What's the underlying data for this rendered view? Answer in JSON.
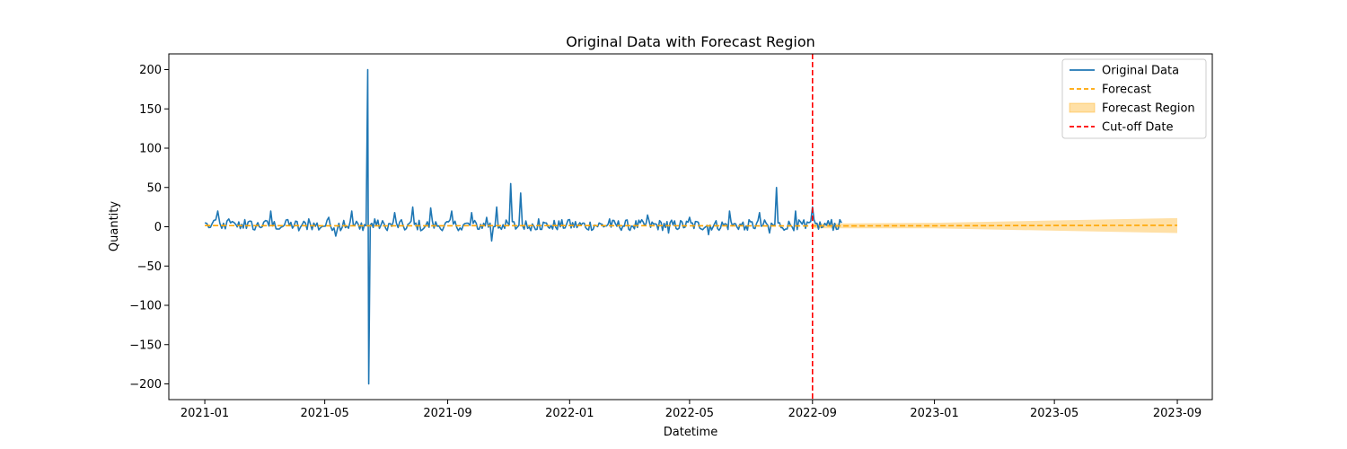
{
  "chart_data": {
    "type": "line",
    "title": "Original Data with Forecast Region",
    "xlabel": "Datetime",
    "ylabel": "Quantity",
    "xlim": [
      "2020-11-26",
      "2023-10-06"
    ],
    "ylim": [
      -220,
      220
    ],
    "x_ticks": [
      "2021-01",
      "2021-05",
      "2021-09",
      "2022-01",
      "2022-05",
      "2022-09",
      "2023-01",
      "2023-05",
      "2023-09"
    ],
    "y_ticks": [
      200,
      150,
      100,
      50,
      0,
      -50,
      -100,
      -150,
      -200
    ],
    "y_tick_labels": [
      "200",
      "150",
      "100",
      "50",
      "0",
      "−50",
      "−100",
      "−150",
      "−200"
    ],
    "grid": false,
    "legend_position": "top-right",
    "series": [
      {
        "name": "Original Data",
        "style": "solid",
        "color": "#1f77b4",
        "points": [
          [
            "2021-01-01",
            5
          ],
          [
            "2021-01-05",
            -1
          ],
          [
            "2021-01-10",
            8
          ],
          [
            "2021-01-14",
            20
          ],
          [
            "2021-01-18",
            -2
          ],
          [
            "2021-01-25",
            10
          ],
          [
            "2021-02-01",
            3
          ],
          [
            "2021-02-10",
            9
          ],
          [
            "2021-02-20",
            -4
          ],
          [
            "2021-03-01",
            6
          ],
          [
            "2021-03-08",
            20
          ],
          [
            "2021-03-15",
            -3
          ],
          [
            "2021-03-25",
            9
          ],
          [
            "2021-04-05",
            -5
          ],
          [
            "2021-04-15",
            10
          ],
          [
            "2021-04-25",
            -4
          ],
          [
            "2021-05-05",
            12
          ],
          [
            "2021-05-12",
            -12
          ],
          [
            "2021-05-20",
            8
          ],
          [
            "2021-05-28",
            20
          ],
          [
            "2021-06-05",
            -3
          ],
          [
            "2021-06-13",
            200
          ],
          [
            "2021-06-14",
            -200
          ],
          [
            "2021-06-20",
            10
          ],
          [
            "2021-07-01",
            -2
          ],
          [
            "2021-07-10",
            18
          ],
          [
            "2021-07-20",
            -4
          ],
          [
            "2021-07-28",
            25
          ],
          [
            "2021-08-05",
            -5
          ],
          [
            "2021-08-15",
            24
          ],
          [
            "2021-08-25",
            -3
          ],
          [
            "2021-09-05",
            20
          ],
          [
            "2021-09-15",
            -4
          ],
          [
            "2021-09-25",
            18
          ],
          [
            "2021-10-01",
            -3
          ],
          [
            "2021-10-10",
            12
          ],
          [
            "2021-10-15",
            -18
          ],
          [
            "2021-10-20",
            25
          ],
          [
            "2021-10-28",
            -2
          ],
          [
            "2021-11-03",
            55
          ],
          [
            "2021-11-08",
            -3
          ],
          [
            "2021-11-13",
            43
          ],
          [
            "2021-11-20",
            -2
          ],
          [
            "2021-12-01",
            10
          ],
          [
            "2021-12-15",
            -3
          ],
          [
            "2022-01-01",
            9
          ],
          [
            "2022-01-20",
            -4
          ],
          [
            "2022-02-10",
            10
          ],
          [
            "2022-03-01",
            -3
          ],
          [
            "2022-03-20",
            15
          ],
          [
            "2022-04-10",
            -8
          ],
          [
            "2022-05-01",
            12
          ],
          [
            "2022-05-20",
            -10
          ],
          [
            "2022-06-10",
            20
          ],
          [
            "2022-06-25",
            -4
          ],
          [
            "2022-07-10",
            18
          ],
          [
            "2022-07-20",
            -8
          ],
          [
            "2022-07-27",
            50
          ],
          [
            "2022-08-05",
            -3
          ],
          [
            "2022-08-15",
            20
          ],
          [
            "2022-08-25",
            -2
          ],
          [
            "2022-09-01",
            25
          ],
          [
            "2022-09-10",
            -1
          ],
          [
            "2022-09-20",
            9
          ],
          [
            "2022-09-30",
            5
          ]
        ]
      },
      {
        "name": "Forecast",
        "style": "dashed",
        "color": "#ffa500",
        "points": [
          [
            "2021-01-01",
            1.5
          ],
          [
            "2021-07-01",
            1.2
          ],
          [
            "2022-01-01",
            1.5
          ],
          [
            "2022-09-01",
            1.0
          ],
          [
            "2023-01-01",
            1.3
          ],
          [
            "2023-05-01",
            1.6
          ],
          [
            "2023-09-01",
            1.8
          ]
        ]
      },
      {
        "name": "Forecast Region",
        "style": "band",
        "color": "#ffa500",
        "upper": [
          [
            "2022-09-01",
            4
          ],
          [
            "2023-01-01",
            5
          ],
          [
            "2023-05-01",
            8
          ],
          [
            "2023-09-01",
            11
          ]
        ],
        "lower": [
          [
            "2022-09-01",
            -2
          ],
          [
            "2023-01-01",
            -2
          ],
          [
            "2023-05-01",
            -5
          ],
          [
            "2023-09-01",
            -8
          ]
        ]
      }
    ],
    "cutoff": {
      "name": "Cut-off Date",
      "date": "2022-09-01",
      "color": "#ff0000"
    }
  }
}
